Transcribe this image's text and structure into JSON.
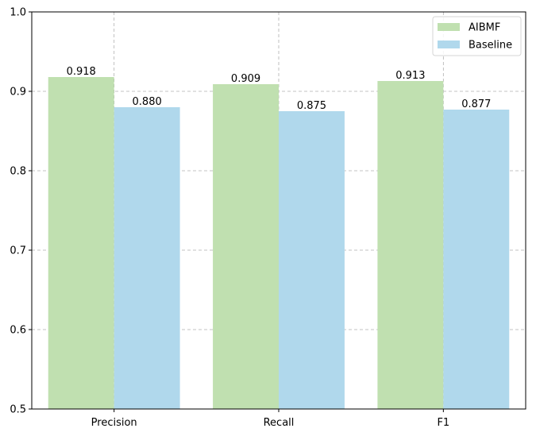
{
  "chart_data": {
    "type": "bar",
    "categories": [
      "Precision",
      "Recall",
      "F1"
    ],
    "series": [
      {
        "name": "AIBMF",
        "values": [
          0.918,
          0.909,
          0.913
        ],
        "color": "#c0e0b0",
        "labels": [
          "0.918",
          "0.909",
          "0.913"
        ]
      },
      {
        "name": "Baseline",
        "values": [
          0.88,
          0.875,
          0.877
        ],
        "color": "#b0d8ec",
        "labels": [
          "0.880",
          "0.875",
          "0.877"
        ]
      }
    ],
    "ylim": [
      0.5,
      1.0
    ],
    "yticks": [
      0.5,
      0.6,
      0.7,
      0.8,
      0.9,
      1.0
    ],
    "ytick_labels": [
      "0.5",
      "0.6",
      "0.7",
      "0.8",
      "0.9",
      "1.0"
    ],
    "grid": true,
    "grid_style": "dashed",
    "legend_position": "top-right",
    "title": "",
    "xlabel": "",
    "ylabel": ""
  }
}
